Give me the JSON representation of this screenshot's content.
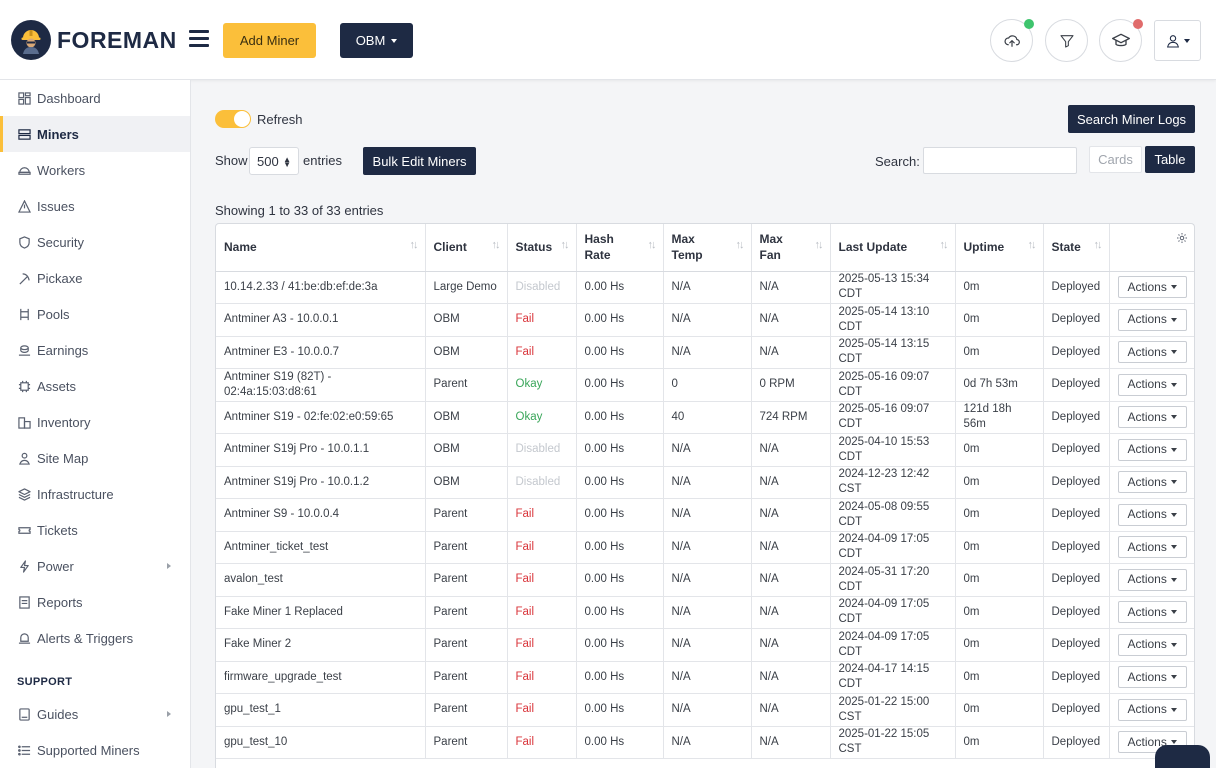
{
  "brand": {
    "name": "FOREMAN"
  },
  "header": {
    "add_miner_label": "Add Miner",
    "client_select_label": "OBM",
    "status_dot_green": "#3ec46d",
    "status_dot_red": "#e06b6b"
  },
  "sidebar": {
    "items": [
      {
        "label": "Dashboard",
        "icon": "dashboard-icon"
      },
      {
        "label": "Miners",
        "icon": "miners-icon",
        "active": true
      },
      {
        "label": "Workers",
        "icon": "workers-icon"
      },
      {
        "label": "Issues",
        "icon": "warning-icon"
      },
      {
        "label": "Security",
        "icon": "shield-icon"
      },
      {
        "label": "Pickaxe",
        "icon": "pickaxe-icon"
      },
      {
        "label": "Pools",
        "icon": "pools-icon"
      },
      {
        "label": "Earnings",
        "icon": "earnings-icon"
      },
      {
        "label": "Assets",
        "icon": "assets-icon"
      },
      {
        "label": "Inventory",
        "icon": "inventory-icon"
      },
      {
        "label": "Site Map",
        "icon": "sitemap-icon"
      },
      {
        "label": "Infrastructure",
        "icon": "layers-icon"
      },
      {
        "label": "Tickets",
        "icon": "ticket-icon"
      },
      {
        "label": "Power",
        "icon": "bolt-icon",
        "has_submenu": true
      },
      {
        "label": "Reports",
        "icon": "reports-icon"
      },
      {
        "label": "Alerts & Triggers",
        "icon": "alerts-icon"
      }
    ],
    "support_heading": "SUPPORT",
    "support_items": [
      {
        "label": "Guides",
        "icon": "guides-icon",
        "has_submenu": true
      },
      {
        "label": "Supported Miners",
        "icon": "list-icon"
      }
    ]
  },
  "toolbar": {
    "refresh_label": "Refresh",
    "search_logs_label": "Search Miner Logs",
    "show_label": "Show",
    "entries_value": "500",
    "entries_label": "entries",
    "bulk_edit_label": "Bulk Edit Miners",
    "search_label": "Search:",
    "search_value": "",
    "cards_label": "Cards",
    "table_label": "Table"
  },
  "showing_text": "Showing 1 to 33 of 33 entries",
  "table": {
    "columns": [
      "Name",
      "Client",
      "Status",
      "Hash Rate",
      "Max Temp",
      "Max Fan",
      "Last Update",
      "Uptime",
      "State"
    ],
    "actions_label": "Actions",
    "rows": [
      {
        "name": "10.14.2.33 / 41:be:db:ef:de:3a",
        "client": "Large Demo",
        "status": "Disabled",
        "hash": "0.00 Hs",
        "temp": "N/A",
        "fan": "N/A",
        "updated": "2025-05-13 15:34 CDT",
        "uptime": "0m",
        "state": "Deployed"
      },
      {
        "name": "Antminer A3 - 10.0.0.1",
        "client": "OBM",
        "status": "Fail",
        "hash": "0.00 Hs",
        "temp": "N/A",
        "fan": "N/A",
        "updated": "2025-05-14 13:10 CDT",
        "uptime": "0m",
        "state": "Deployed"
      },
      {
        "name": "Antminer E3 - 10.0.0.7",
        "client": "OBM",
        "status": "Fail",
        "hash": "0.00 Hs",
        "temp": "N/A",
        "fan": "N/A",
        "updated": "2025-05-14 13:15 CDT",
        "uptime": "0m",
        "state": "Deployed"
      },
      {
        "name": "Antminer S19 (82T) - 02:4a:15:03:d8:61",
        "client": "Parent",
        "status": "Okay",
        "hash": "0.00 Hs",
        "temp": "0",
        "fan": "0 RPM",
        "updated": "2025-05-16 09:07 CDT",
        "uptime": "0d 7h 53m",
        "state": "Deployed"
      },
      {
        "name": "Antminer S19 - 02:fe:02:e0:59:65",
        "client": "OBM",
        "status": "Okay",
        "hash": "0.00 Hs",
        "temp": "40",
        "fan": "724 RPM",
        "updated": "2025-05-16 09:07 CDT",
        "uptime": "121d 18h 56m",
        "state": "Deployed"
      },
      {
        "name": "Antminer S19j Pro - 10.0.1.1",
        "client": "OBM",
        "status": "Disabled",
        "hash": "0.00 Hs",
        "temp": "N/A",
        "fan": "N/A",
        "updated": "2025-04-10 15:53 CDT",
        "uptime": "0m",
        "state": "Deployed"
      },
      {
        "name": "Antminer S19j Pro - 10.0.1.2",
        "client": "OBM",
        "status": "Disabled",
        "hash": "0.00 Hs",
        "temp": "N/A",
        "fan": "N/A",
        "updated": "2024-12-23 12:42 CST",
        "uptime": "0m",
        "state": "Deployed"
      },
      {
        "name": "Antminer S9 - 10.0.0.4",
        "client": "Parent",
        "status": "Fail",
        "hash": "0.00 Hs",
        "temp": "N/A",
        "fan": "N/A",
        "updated": "2024-05-08 09:55 CDT",
        "uptime": "0m",
        "state": "Deployed"
      },
      {
        "name": "Antminer_ticket_test",
        "client": "Parent",
        "status": "Fail",
        "hash": "0.00 Hs",
        "temp": "N/A",
        "fan": "N/A",
        "updated": "2024-04-09 17:05 CDT",
        "uptime": "0m",
        "state": "Deployed"
      },
      {
        "name": "avalon_test",
        "client": "Parent",
        "status": "Fail",
        "hash": "0.00 Hs",
        "temp": "N/A",
        "fan": "N/A",
        "updated": "2024-05-31 17:20 CDT",
        "uptime": "0m",
        "state": "Deployed"
      },
      {
        "name": "Fake Miner 1 Replaced",
        "client": "Parent",
        "status": "Fail",
        "hash": "0.00 Hs",
        "temp": "N/A",
        "fan": "N/A",
        "updated": "2024-04-09 17:05 CDT",
        "uptime": "0m",
        "state": "Deployed"
      },
      {
        "name": "Fake Miner 2",
        "client": "Parent",
        "status": "Fail",
        "hash": "0.00 Hs",
        "temp": "N/A",
        "fan": "N/A",
        "updated": "2024-04-09 17:05 CDT",
        "uptime": "0m",
        "state": "Deployed"
      },
      {
        "name": "firmware_upgrade_test",
        "client": "Parent",
        "status": "Fail",
        "hash": "0.00 Hs",
        "temp": "N/A",
        "fan": "N/A",
        "updated": "2024-04-17 14:15 CDT",
        "uptime": "0m",
        "state": "Deployed"
      },
      {
        "name": "gpu_test_1",
        "client": "Parent",
        "status": "Fail",
        "hash": "0.00 Hs",
        "temp": "N/A",
        "fan": "N/A",
        "updated": "2025-01-22 15:00 CST",
        "uptime": "0m",
        "state": "Deployed"
      },
      {
        "name": "gpu_test_10",
        "client": "Parent",
        "status": "Fail",
        "hash": "0.00 Hs",
        "temp": "N/A",
        "fan": "N/A",
        "updated": "2025-01-22 15:05 CST",
        "uptime": "0m",
        "state": "Deployed"
      }
    ]
  }
}
